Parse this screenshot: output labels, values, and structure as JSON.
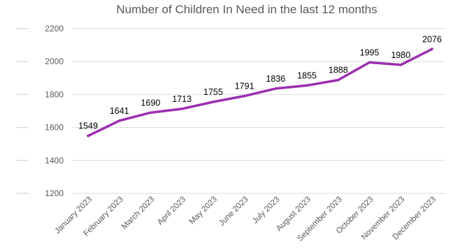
{
  "chart_data": {
    "type": "line",
    "title": "Number of Children In Need in the last 12 months",
    "categories": [
      "January 2023",
      "February 2023",
      "March 2023",
      "April 2023",
      "May 2023",
      "June 2023",
      "July 2023",
      "August 2023",
      "September 2023",
      "October 2023",
      "November 2023",
      "December 2023"
    ],
    "series": [
      {
        "values": [
          1549,
          1641,
          1690,
          1713,
          1755,
          1791,
          1836,
          1855,
          1888,
          1995,
          1980,
          2076
        ],
        "color": "#9b2fae"
      }
    ],
    "yticks": [
      1200,
      1400,
      1600,
      1800,
      2000,
      2200
    ],
    "ylim": [
      1200,
      2200
    ],
    "grid": true,
    "legend": "none",
    "data_labels": true
  }
}
